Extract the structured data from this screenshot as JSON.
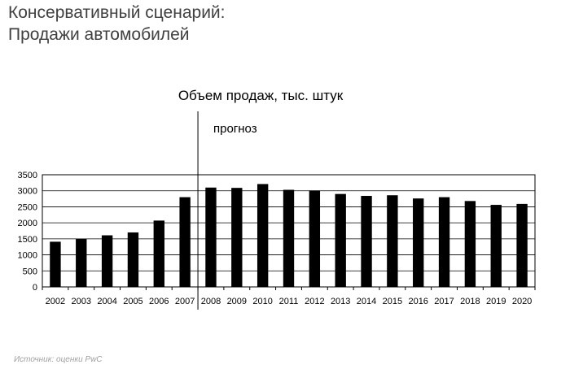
{
  "slide": {
    "title_line1": "Консервативный сценарий:",
    "title_line2": "Продажи автомобилей"
  },
  "forecast_label": "прогноз",
  "source": "Источник: оценки PwC",
  "chart_data": {
    "type": "bar",
    "title": "Объем продаж, тыс. штук",
    "xlabel": "",
    "ylabel": "",
    "ylim": [
      0,
      3500
    ],
    "yticks": [
      0,
      500,
      1000,
      1500,
      2000,
      2500,
      3000,
      3500
    ],
    "grid": true,
    "legend": "none",
    "bar_color": "#000000",
    "forecast_starts_after": "2007",
    "categories": [
      "2002",
      "2003",
      "2004",
      "2005",
      "2006",
      "2007",
      "2008",
      "2009",
      "2010",
      "2011",
      "2012",
      "2013",
      "2014",
      "2015",
      "2016",
      "2017",
      "2018",
      "2019",
      "2020"
    ],
    "values": [
      1410,
      1500,
      1610,
      1700,
      2070,
      2800,
      3100,
      3090,
      3210,
      3030,
      3010,
      2900,
      2840,
      2860,
      2760,
      2800,
      2680,
      2560,
      2590
    ]
  }
}
